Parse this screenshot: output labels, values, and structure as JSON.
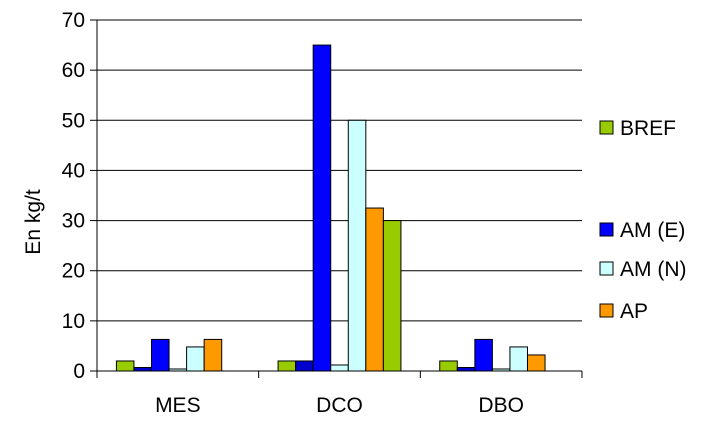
{
  "chart_data": {
    "type": "bar",
    "categories": [
      "MES",
      "DCO",
      "DBO"
    ],
    "ylabel": "En kg/t",
    "xlabel": "",
    "ylim": [
      0,
      70
    ],
    "yticks": [
      0,
      10,
      20,
      30,
      40,
      50,
      60,
      70
    ],
    "grid": true,
    "legend_position": "right",
    "series": [
      {
        "color": "#99cc00",
        "values": [
          2,
          2,
          2
        ]
      },
      {
        "color": "#0000cc",
        "values": [
          0.7,
          2,
          0.7
        ]
      },
      {
        "color": "#0000ff",
        "values": [
          6.3,
          65,
          6.3
        ]
      },
      {
        "color": "#ccffff",
        "values": [
          0.4,
          1.2,
          0.4
        ]
      },
      {
        "color": "#ccffff",
        "values": [
          4.8,
          50,
          4.8
        ]
      },
      {
        "color": "#ff9900",
        "values": [
          6.3,
          32.5,
          3.2
        ]
      },
      {
        "color": "#99cc00",
        "values": [
          0,
          30,
          0
        ]
      }
    ],
    "legend": [
      {
        "label": "BREF",
        "color": "#99cc00"
      },
      {
        "label": "AM (E)",
        "color": "#0000ff"
      },
      {
        "label": "AM (N)",
        "color": "#ccffff"
      },
      {
        "label": "AP",
        "color": "#ff9900"
      }
    ]
  }
}
